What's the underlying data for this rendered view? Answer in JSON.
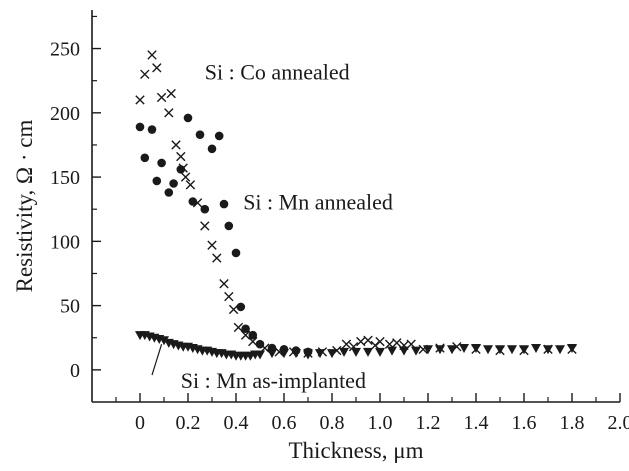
{
  "chart_data": {
    "type": "scatter",
    "xlabel": "Thickness, μm",
    "ylabel": "Resistivity, Ω · cm",
    "xlim": [
      -0.2,
      2.0
    ],
    "ylim": [
      -25,
      280
    ],
    "x_ticks": [
      "0",
      "0.2",
      "0.4",
      "0.6",
      "0.8",
      "1.0",
      "1.2",
      "1.4",
      "1.6",
      "1.8",
      "2.0"
    ],
    "y_ticks": [
      "0",
      "50",
      "100",
      "150",
      "200",
      "250"
    ],
    "grid": false,
    "annotations": [
      {
        "text": "Si : Co annealed",
        "x": 0.27,
        "y": 232
      },
      {
        "text": "Si : Mn annealed",
        "x": 0.43,
        "y": 131
      },
      {
        "text": "Si : Mn as-implanted",
        "x": 0.17,
        "y": -8
      }
    ],
    "series": [
      {
        "marker": "cross",
        "x": [
          0.0,
          0.02,
          0.05,
          0.07,
          0.09,
          0.12,
          0.13,
          0.15,
          0.17,
          0.18,
          0.19,
          0.21,
          0.24,
          0.27,
          0.3,
          0.32,
          0.35,
          0.37,
          0.39,
          0.41,
          0.44,
          0.47,
          0.52,
          0.58,
          0.64,
          0.7,
          0.76,
          0.82,
          0.86,
          0.89,
          0.92,
          0.95,
          0.98,
          1.0,
          1.04,
          1.07,
          1.1,
          1.13,
          1.18,
          1.25,
          1.32,
          1.4,
          1.5,
          1.6,
          1.7,
          1.8
        ],
        "y": [
          210,
          230,
          245,
          235,
          212,
          200,
          215,
          175,
          166,
          157,
          150,
          144,
          130,
          112,
          97,
          87,
          67,
          57,
          47,
          33,
          27,
          22,
          17,
          14,
          14,
          13,
          14,
          15,
          20,
          18,
          22,
          23,
          19,
          22,
          20,
          21,
          19,
          20,
          16,
          17,
          18,
          16,
          15,
          15,
          16,
          16
        ]
      },
      {
        "marker": "circle",
        "x": [
          0.0,
          0.02,
          0.05,
          0.07,
          0.09,
          0.12,
          0.14,
          0.17,
          0.2,
          0.22,
          0.25,
          0.27,
          0.3,
          0.33,
          0.35,
          0.37,
          0.4,
          0.42,
          0.44,
          0.47,
          0.5,
          0.55,
          0.6,
          0.65,
          0.7
        ],
        "y": [
          189,
          165,
          187,
          147,
          161,
          138,
          145,
          156,
          196,
          131,
          183,
          125,
          172,
          182,
          129,
          112,
          91,
          49,
          32,
          27,
          20,
          17,
          16,
          15,
          14
        ]
      },
      {
        "marker": "triangle-down",
        "x": [
          0.0,
          0.02,
          0.04,
          0.06,
          0.08,
          0.1,
          0.12,
          0.14,
          0.16,
          0.18,
          0.2,
          0.22,
          0.24,
          0.26,
          0.28,
          0.3,
          0.32,
          0.34,
          0.36,
          0.38,
          0.4,
          0.42,
          0.44,
          0.46,
          0.48,
          0.5,
          0.55,
          0.6,
          0.65,
          0.7,
          0.75,
          0.8,
          0.85,
          0.9,
          0.95,
          1.0,
          1.05,
          1.1,
          1.15,
          1.2,
          1.25,
          1.3,
          1.35,
          1.4,
          1.45,
          1.5,
          1.55,
          1.6,
          1.65,
          1.7,
          1.75,
          1.8
        ],
        "y": [
          27,
          27,
          26,
          25,
          24,
          23,
          21,
          20,
          19,
          18,
          18,
          17,
          16,
          15,
          15,
          14,
          13,
          13,
          12,
          12,
          11,
          11,
          11,
          11,
          12,
          12,
          13,
          13,
          13,
          12,
          13,
          13,
          14,
          14,
          14,
          14,
          15,
          15,
          15,
          16,
          16,
          16,
          17,
          17,
          16,
          16,
          16,
          16,
          17,
          16,
          16,
          17
        ]
      }
    ]
  }
}
